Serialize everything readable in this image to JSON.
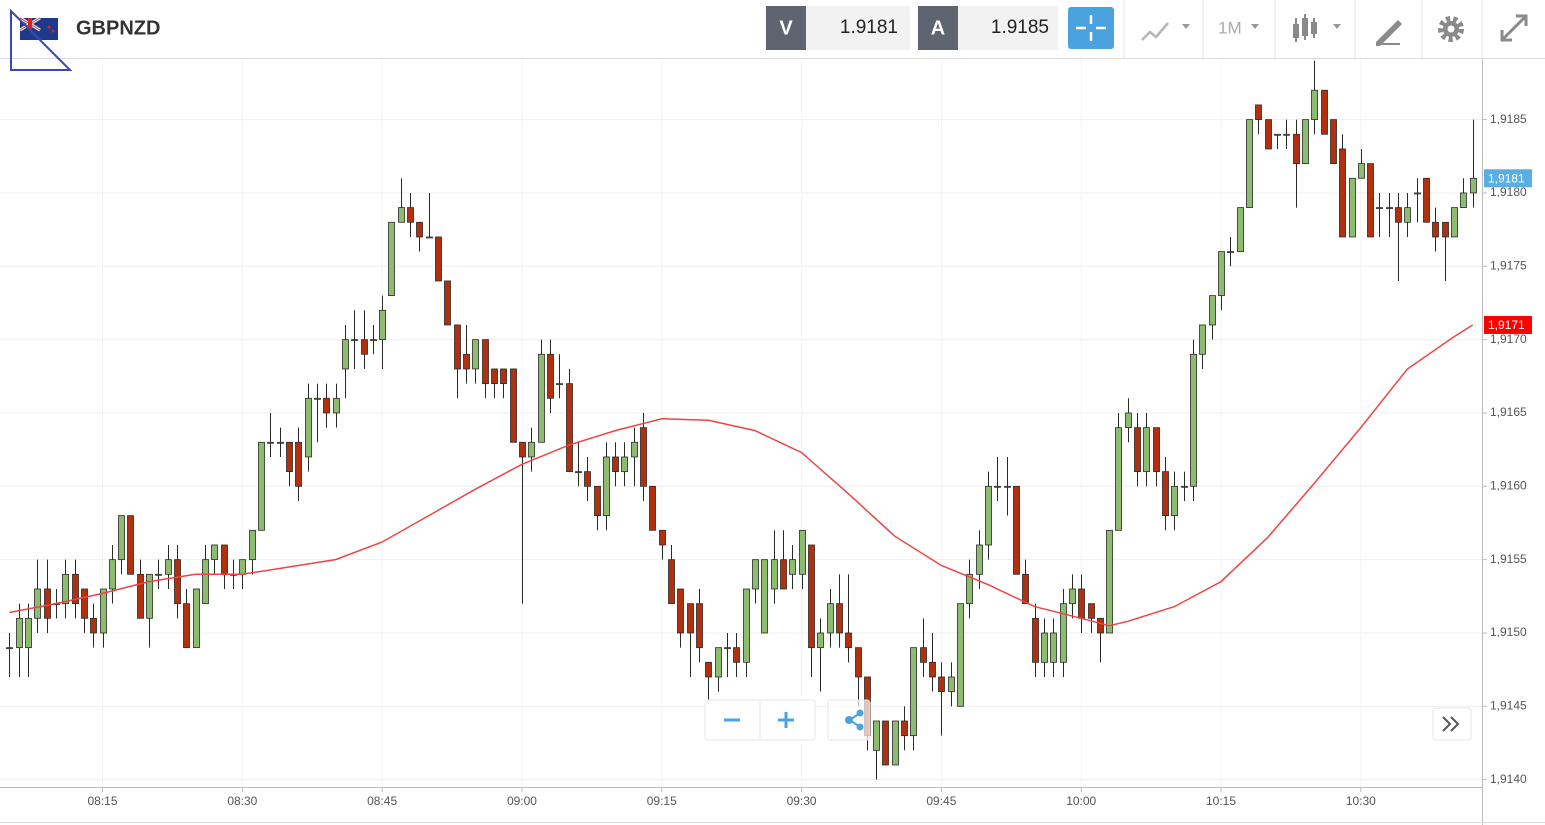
{
  "header": {
    "symbol": "GBPNZD",
    "bid_label": "V",
    "bid": "1.9181",
    "ask_label": "A",
    "ask": "1.9185",
    "timeframe": "1M"
  },
  "chart_data": {
    "type": "candlestick",
    "x": [
      "08:05",
      "08:06",
      "08:07",
      "08:08",
      "08:09",
      "08:10",
      "08:11",
      "08:12",
      "08:13",
      "08:14",
      "08:15",
      "08:16",
      "08:17",
      "08:18",
      "08:19",
      "08:20",
      "08:21",
      "08:22",
      "08:23",
      "08:24",
      "08:25",
      "08:26",
      "08:27",
      "08:28",
      "08:29",
      "08:30",
      "08:31",
      "08:32",
      "08:33",
      "08:34",
      "08:35",
      "08:36",
      "08:37",
      "08:38",
      "08:39",
      "08:40",
      "08:41",
      "08:42",
      "08:43",
      "08:44",
      "08:45",
      "08:46",
      "08:47",
      "08:48",
      "08:49",
      "08:50",
      "08:51",
      "08:52",
      "08:53",
      "08:54",
      "08:55",
      "08:56",
      "08:57",
      "08:58",
      "08:59",
      "09:00",
      "09:01",
      "09:02",
      "09:03",
      "09:04",
      "09:05",
      "09:06",
      "09:07",
      "09:08",
      "09:09",
      "09:10",
      "09:11",
      "09:12",
      "09:13",
      "09:14",
      "09:15",
      "09:16",
      "09:17",
      "09:18",
      "09:19",
      "09:20",
      "09:21",
      "09:22",
      "09:23",
      "09:24",
      "09:25",
      "09:26",
      "09:27",
      "09:28",
      "09:29",
      "09:30",
      "09:31",
      "09:32",
      "09:33",
      "09:34",
      "09:35",
      "09:36",
      "09:37",
      "09:38",
      "09:39",
      "09:40",
      "09:41",
      "09:42",
      "09:43",
      "09:44",
      "09:45",
      "09:46",
      "09:47",
      "09:48",
      "09:49",
      "09:50",
      "09:51",
      "09:52",
      "09:53",
      "09:54",
      "09:55",
      "09:56",
      "09:57",
      "09:58",
      "09:59",
      "10:00",
      "10:01",
      "10:02",
      "10:03",
      "10:04",
      "10:05",
      "10:06",
      "10:07",
      "10:08",
      "10:09",
      "10:10",
      "10:11",
      "10:12",
      "10:13",
      "10:14",
      "10:15",
      "10:16",
      "10:17",
      "10:18",
      "10:19",
      "10:20",
      "10:21",
      "10:22",
      "10:23",
      "10:24",
      "10:25",
      "10:26",
      "10:27",
      "10:28",
      "10:29",
      "10:30",
      "10:31",
      "10:32",
      "10:33",
      "10:34",
      "10:35",
      "10:36",
      "10:37",
      "10:38",
      "10:39",
      "10:40",
      "10:41",
      "10:42"
    ],
    "ohlc": [
      [
        1.9149,
        1.915,
        1.9147,
        1.9149
      ],
      [
        1.9149,
        1.9152,
        1.9147,
        1.9151
      ],
      [
        1.9149,
        1.9152,
        1.9147,
        1.9151
      ],
      [
        1.9151,
        1.9155,
        1.915,
        1.9153
      ],
      [
        1.9153,
        1.9155,
        1.915,
        1.9151
      ],
      [
        1.9152,
        1.9153,
        1.9151,
        1.9152
      ],
      [
        1.9152,
        1.9155,
        1.9151,
        1.9154
      ],
      [
        1.9154,
        1.9155,
        1.9151,
        1.9152
      ],
      [
        1.9153,
        1.9153,
        1.915,
        1.9151
      ],
      [
        1.9151,
        1.9152,
        1.9149,
        1.915
      ],
      [
        1.915,
        1.9153,
        1.9149,
        1.9153
      ],
      [
        1.9153,
        1.9156,
        1.9152,
        1.9155
      ],
      [
        1.9155,
        1.9158,
        1.9154,
        1.9158
      ],
      [
        1.9158,
        1.9158,
        1.9154,
        1.9154
      ],
      [
        1.9154,
        1.9155,
        1.9151,
        1.9151
      ],
      [
        1.9151,
        1.9154,
        1.9149,
        1.9154
      ],
      [
        1.9154,
        1.9155,
        1.9153,
        1.9154
      ],
      [
        1.9154,
        1.9156,
        1.9153,
        1.9155
      ],
      [
        1.9155,
        1.9156,
        1.9151,
        1.9152
      ],
      [
        1.9152,
        1.9153,
        1.9149,
        1.9149
      ],
      [
        1.9149,
        1.9153,
        1.9149,
        1.9153
      ],
      [
        1.9152,
        1.9156,
        1.9152,
        1.9155
      ],
      [
        1.9155,
        1.9156,
        1.9154,
        1.9156
      ],
      [
        1.9156,
        1.9156,
        1.9153,
        1.9154
      ],
      [
        1.9154,
        1.9155,
        1.9153,
        1.9154
      ],
      [
        1.9154,
        1.9155,
        1.9153,
        1.9155
      ],
      [
        1.9155,
        1.9157,
        1.9154,
        1.9157
      ],
      [
        1.9157,
        1.9163,
        1.9157,
        1.9163
      ],
      [
        1.9163,
        1.9165,
        1.9162,
        1.9163
      ],
      [
        1.9163,
        1.9164,
        1.9162,
        1.9163
      ],
      [
        1.9163,
        1.9163,
        1.916,
        1.9161
      ],
      [
        1.9163,
        1.9164,
        1.9159,
        1.916
      ],
      [
        1.9162,
        1.9167,
        1.9161,
        1.9166
      ],
      [
        1.9166,
        1.9167,
        1.9163,
        1.9166
      ],
      [
        1.9166,
        1.9167,
        1.9164,
        1.9165
      ],
      [
        1.9165,
        1.9167,
        1.9164,
        1.9166
      ],
      [
        1.9168,
        1.9171,
        1.9166,
        1.917
      ],
      [
        1.917,
        1.9172,
        1.9168,
        1.917
      ],
      [
        1.917,
        1.9172,
        1.9168,
        1.9169
      ],
      [
        1.917,
        1.9171,
        1.9169,
        1.917
      ],
      [
        1.917,
        1.9173,
        1.9168,
        1.9172
      ],
      [
        1.9173,
        1.9178,
        1.9173,
        1.9178
      ],
      [
        1.9178,
        1.9181,
        1.9178,
        1.9179
      ],
      [
        1.9179,
        1.918,
        1.9177,
        1.9178
      ],
      [
        1.9178,
        1.9178,
        1.9176,
        1.9177
      ],
      [
        1.9177,
        1.918,
        1.9177,
        1.9177
      ],
      [
        1.9177,
        1.9177,
        1.9174,
        1.9174
      ],
      [
        1.9174,
        1.9174,
        1.9171,
        1.9171
      ],
      [
        1.9171,
        1.9171,
        1.9166,
        1.9168
      ],
      [
        1.9169,
        1.9171,
        1.9167,
        1.9168
      ],
      [
        1.9168,
        1.917,
        1.9167,
        1.917
      ],
      [
        1.917,
        1.917,
        1.9166,
        1.9167
      ],
      [
        1.9168,
        1.9168,
        1.9166,
        1.9167
      ],
      [
        1.9168,
        1.9168,
        1.9166,
        1.9167
      ],
      [
        1.9168,
        1.9168,
        1.9163,
        1.9163
      ],
      [
        1.9163,
        1.9163,
        1.9152,
        1.9162
      ],
      [
        1.9162,
        1.9164,
        1.9161,
        1.9163
      ],
      [
        1.9163,
        1.917,
        1.9163,
        1.9169
      ],
      [
        1.9169,
        1.917,
        1.9165,
        1.9166
      ],
      [
        1.9167,
        1.9169,
        1.9166,
        1.9167
      ],
      [
        1.9167,
        1.9168,
        1.9161,
        1.9161
      ],
      [
        1.9161,
        1.9163,
        1.916,
        1.9161
      ],
      [
        1.9161,
        1.9162,
        1.9159,
        1.916
      ],
      [
        1.916,
        1.916,
        1.9157,
        1.9158
      ],
      [
        1.9158,
        1.9163,
        1.9157,
        1.9162
      ],
      [
        1.9162,
        1.9163,
        1.916,
        1.9161
      ],
      [
        1.9161,
        1.9163,
        1.916,
        1.9162
      ],
      [
        1.9162,
        1.9164,
        1.916,
        1.9163
      ],
      [
        1.9164,
        1.9165,
        1.9159,
        1.916
      ],
      [
        1.916,
        1.916,
        1.9157,
        1.9157
      ],
      [
        1.9157,
        1.9157,
        1.9155,
        1.9156
      ],
      [
        1.9155,
        1.9156,
        1.9152,
        1.9152
      ],
      [
        1.9153,
        1.9153,
        1.9149,
        1.915
      ],
      [
        1.9152,
        1.9152,
        1.9147,
        1.915
      ],
      [
        1.9152,
        1.9153,
        1.9148,
        1.9149
      ],
      [
        1.9148,
        1.9148,
        1.9145,
        1.9147
      ],
      [
        1.9147,
        1.9149,
        1.9146,
        1.9149
      ],
      [
        1.9149,
        1.915,
        1.9147,
        1.9149
      ],
      [
        1.9149,
        1.915,
        1.9147,
        1.9148
      ],
      [
        1.9148,
        1.9153,
        1.9147,
        1.9153
      ],
      [
        1.9153,
        1.9155,
        1.9152,
        1.9155
      ],
      [
        1.915,
        1.9155,
        1.915,
        1.9155
      ],
      [
        1.9153,
        1.9157,
        1.9152,
        1.9155
      ],
      [
        1.9155,
        1.9157,
        1.9153,
        1.9153
      ],
      [
        1.9154,
        1.9156,
        1.9153,
        1.9155
      ],
      [
        1.9154,
        1.9157,
        1.9153,
        1.9157
      ],
      [
        1.9156,
        1.9156,
        1.9147,
        1.9149
      ],
      [
        1.9149,
        1.9151,
        1.9146,
        1.915
      ],
      [
        1.915,
        1.9153,
        1.9149,
        1.9152
      ],
      [
        1.9152,
        1.9154,
        1.9149,
        1.915
      ],
      [
        1.915,
        1.9154,
        1.9148,
        1.9149
      ],
      [
        1.9149,
        1.9149,
        1.9145,
        1.9147
      ],
      [
        1.9147,
        1.9147,
        1.9142,
        1.9143
      ],
      [
        1.9142,
        1.9144,
        1.914,
        1.9144
      ],
      [
        1.9144,
        1.9144,
        1.9141,
        1.9141
      ],
      [
        1.9141,
        1.9144,
        1.9141,
        1.9144
      ],
      [
        1.9144,
        1.9145,
        1.9142,
        1.9143
      ],
      [
        1.9143,
        1.9149,
        1.9142,
        1.9149
      ],
      [
        1.9149,
        1.9151,
        1.9147,
        1.9148
      ],
      [
        1.9148,
        1.915,
        1.9146,
        1.9147
      ],
      [
        1.9147,
        1.9148,
        1.9143,
        1.9146
      ],
      [
        1.9146,
        1.9148,
        1.9145,
        1.9147
      ],
      [
        1.9145,
        1.9152,
        1.9145,
        1.9152
      ],
      [
        1.9152,
        1.9155,
        1.9151,
        1.9154
      ],
      [
        1.9154,
        1.9157,
        1.9153,
        1.9156
      ],
      [
        1.9156,
        1.9161,
        1.9155,
        1.916
      ],
      [
        1.916,
        1.9162,
        1.9159,
        1.916
      ],
      [
        1.916,
        1.9162,
        1.9158,
        1.916
      ],
      [
        1.916,
        1.916,
        1.9154,
        1.9154
      ],
      [
        1.9154,
        1.9155,
        1.9152,
        1.9152
      ],
      [
        1.9151,
        1.9152,
        1.9147,
        1.9148
      ],
      [
        1.9148,
        1.9151,
        1.9147,
        1.915
      ],
      [
        1.9148,
        1.9151,
        1.9147,
        1.915
      ],
      [
        1.9148,
        1.9153,
        1.9147,
        1.9152
      ],
      [
        1.9152,
        1.9154,
        1.9151,
        1.9153
      ],
      [
        1.9153,
        1.9154,
        1.915,
        1.9151
      ],
      [
        1.9152,
        1.9152,
        1.915,
        1.9151
      ],
      [
        1.9151,
        1.9151,
        1.9148,
        1.915
      ],
      [
        1.915,
        1.9157,
        1.915,
        1.9157
      ],
      [
        1.9157,
        1.9165,
        1.9157,
        1.9164
      ],
      [
        1.9164,
        1.9166,
        1.9163,
        1.9165
      ],
      [
        1.9164,
        1.9165,
        1.916,
        1.9161
      ],
      [
        1.9161,
        1.9165,
        1.916,
        1.9164
      ],
      [
        1.9164,
        1.9164,
        1.916,
        1.9161
      ],
      [
        1.9161,
        1.9162,
        1.9157,
        1.9158
      ],
      [
        1.9158,
        1.9161,
        1.9157,
        1.916
      ],
      [
        1.916,
        1.9161,
        1.9159,
        1.916
      ],
      [
        1.916,
        1.917,
        1.9159,
        1.9169
      ],
      [
        1.9169,
        1.9171,
        1.9168,
        1.9171
      ],
      [
        1.9171,
        1.9173,
        1.917,
        1.9173
      ],
      [
        1.9173,
        1.9176,
        1.9172,
        1.9176
      ],
      [
        1.9176,
        1.9177,
        1.9175,
        1.9176
      ],
      [
        1.9176,
        1.9179,
        1.9176,
        1.9179
      ],
      [
        1.9179,
        1.9185,
        1.9179,
        1.9185
      ],
      [
        1.9186,
        1.9186,
        1.9184,
        1.9185
      ],
      [
        1.9185,
        1.9185,
        1.9183,
        1.9183
      ],
      [
        1.9184,
        1.9184,
        1.9183,
        1.9184
      ],
      [
        1.9184,
        1.9185,
        1.9183,
        1.9184
      ],
      [
        1.9184,
        1.9185,
        1.9179,
        1.9182
      ],
      [
        1.9182,
        1.9185,
        1.9182,
        1.9185
      ],
      [
        1.9185,
        1.9189,
        1.9184,
        1.9187
      ],
      [
        1.9187,
        1.9187,
        1.9184,
        1.9184
      ],
      [
        1.9185,
        1.9185,
        1.9182,
        1.9182
      ],
      [
        1.9183,
        1.9184,
        1.9177,
        1.9177
      ],
      [
        1.9177,
        1.9181,
        1.9177,
        1.9181
      ],
      [
        1.9181,
        1.9183,
        1.9181,
        1.9182
      ],
      [
        1.9182,
        1.9182,
        1.9177,
        1.9177
      ],
      [
        1.9179,
        1.918,
        1.9177,
        1.9179
      ],
      [
        1.9179,
        1.918,
        1.9177,
        1.9179
      ],
      [
        1.9179,
        1.918,
        1.9174,
        1.9178
      ],
      [
        1.9178,
        1.918,
        1.9177,
        1.9179
      ],
      [
        1.918,
        1.9181,
        1.9178,
        1.918
      ],
      [
        1.9181,
        1.9181,
        1.9178,
        1.9178
      ],
      [
        1.9178,
        1.9179,
        1.9176,
        1.9177
      ],
      [
        1.9178,
        1.9178,
        1.9174,
        1.9177
      ],
      [
        1.9177,
        1.9179,
        1.9177,
        1.9179
      ],
      [
        1.9179,
        1.9181,
        1.9179,
        1.918
      ],
      [
        1.918,
        1.9185,
        1.9179,
        1.9181
      ]
    ],
    "up_color": "#8cbd6e",
    "down_color": "#b3300f",
    "overlay": {
      "color": "#ef4444",
      "x": [
        "08:05",
        "08:10",
        "08:15",
        "08:20",
        "08:25",
        "08:30",
        "08:35",
        "08:40",
        "08:45",
        "08:50",
        "08:55",
        "09:00",
        "09:05",
        "09:10",
        "09:15",
        "09:20",
        "09:25",
        "09:30",
        "09:35",
        "09:40",
        "09:45",
        "09:50",
        "09:55",
        "10:00",
        "10:03",
        "10:05",
        "10:10",
        "10:15",
        "10:20",
        "10:25",
        "10:30",
        "10:35",
        "10:40",
        "10:42"
      ],
      "values": [
        1.91514,
        1.9152,
        1.91527,
        1.91535,
        1.9154,
        1.9154,
        1.91545,
        1.9155,
        1.91562,
        1.9158,
        1.91598,
        1.91615,
        1.91628,
        1.91638,
        1.91646,
        1.91645,
        1.91638,
        1.91623,
        1.91595,
        1.91566,
        1.91546,
        1.91533,
        1.91518,
        1.9151,
        1.91505,
        1.91508,
        1.91518,
        1.91535,
        1.91565,
        1.91602,
        1.9164,
        1.9168,
        1.91702,
        1.9171
      ]
    },
    "xlim": [
      "08:04",
      "10:43"
    ],
    "xticks": [
      "08:15",
      "08:30",
      "08:45",
      "09:00",
      "09:15",
      "09:30",
      "09:45",
      "10:00",
      "10:15",
      "10:30"
    ],
    "ylim": [
      1.91395,
      1.91892
    ],
    "yticks": [
      {
        "value": 1.914,
        "label": "1,9140"
      },
      {
        "value": 1.9145,
        "label": "1,9145"
      },
      {
        "value": 1.915,
        "label": "1,9150"
      },
      {
        "value": 1.9155,
        "label": "1,9155"
      },
      {
        "value": 1.916,
        "label": "1,9160"
      },
      {
        "value": 1.9165,
        "label": "1,9165"
      },
      {
        "value": 1.917,
        "label": "1,9170"
      },
      {
        "value": 1.9175,
        "label": "1,9175"
      },
      {
        "value": 1.918,
        "label": "1,9180"
      },
      {
        "value": 1.9185,
        "label": "1,9185"
      }
    ],
    "grid": true,
    "last_price": {
      "value": 1.9181,
      "label": "1,9181",
      "color": "#5aaee0"
    },
    "overlay_last": {
      "value": 1.9171,
      "label": "1,9171",
      "color": "#ff0000"
    }
  }
}
